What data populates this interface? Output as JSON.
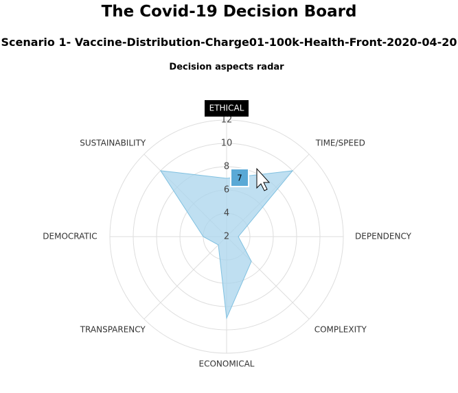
{
  "header": {
    "title": "The Covid-19 Decision Board",
    "subtitle": "Scenario 1- Vaccine-Distribution-Charge01-100k-Health-Front-2020-04-20"
  },
  "chart_data": {
    "type": "radar",
    "title": "Decision aspects radar",
    "categories": [
      "ETHICAL",
      "TIME/SPEED",
      "DEPENDENCY",
      "COMPLEXITY",
      "ECONOMICAL",
      "TRANSPARENCY",
      "DEMOCRATIC",
      "SUSTAINABILITY"
    ],
    "values": [
      7,
      10,
      3,
      5,
      9,
      3,
      4,
      10
    ],
    "color": "#a9d4ec",
    "ylim": [
      2,
      12
    ],
    "yticks": [
      2,
      4,
      6,
      8,
      10,
      12
    ],
    "grid": true
  }
}
